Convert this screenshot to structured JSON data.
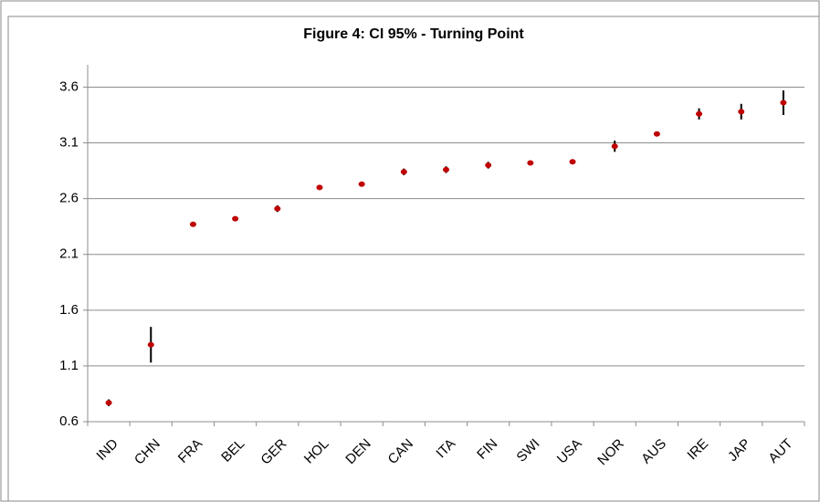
{
  "chart_data": {
    "type": "errorbar",
    "title": "Figure 4: CI 95% -  Turning Point",
    "categories": [
      "IND",
      "CHN",
      "FRA",
      "BEL",
      "GER",
      "HOL",
      "DEN",
      "CAN",
      "ITA",
      "FIN",
      "SWI",
      "USA",
      "NOR",
      "AUS",
      "IRE",
      "JAP",
      "AUT"
    ],
    "series": [
      {
        "color": "#c00000",
        "values": [
          0.77,
          1.29,
          2.37,
          2.42,
          2.51,
          2.7,
          2.73,
          2.84,
          2.86,
          2.9,
          2.92,
          2.93,
          3.07,
          3.18,
          3.36,
          3.38,
          3.46
        ],
        "errors": [
          0.03,
          0.16,
          0.01,
          0.01,
          0.03,
          0.01,
          0.01,
          0.03,
          0.03,
          0.03,
          0.01,
          0.02,
          0.05,
          0.01,
          0.05,
          0.07,
          0.11
        ]
      }
    ],
    "ylim": [
      0.6,
      3.8
    ],
    "yticks": [
      0.6,
      1.1,
      1.6,
      2.1,
      2.6,
      3.1,
      3.6
    ],
    "grid": true
  }
}
